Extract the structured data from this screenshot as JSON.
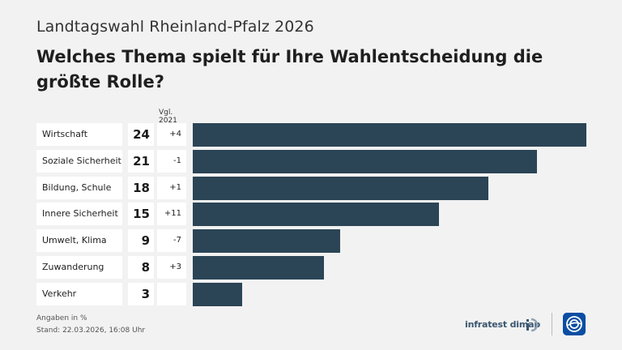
{
  "header": {
    "supertitle": "Landtagswahl Rheinland-Pfalz 2026",
    "title": "Welches Thema spielt für Ihre Wahlentscheidung die größte Rolle?",
    "compare_label": "Vgl. 2021"
  },
  "chart_data": {
    "type": "bar",
    "orientation": "horizontal",
    "title": "Welches Thema spielt für Ihre Wahlentscheidung die größte Rolle?",
    "unit": "Angaben in %",
    "categories": [
      "Wirtschaft",
      "Soziale Sicherheit",
      "Bildung, Schule",
      "Innere Sicherheit",
      "Umwelt, Klima",
      "Zuwanderung",
      "Verkehr"
    ],
    "values": [
      24,
      21,
      18,
      15,
      9,
      8,
      3
    ],
    "diffs": [
      "+4",
      "-1",
      "+1",
      "+11",
      "-7",
      "+3",
      ""
    ],
    "xlim": [
      0,
      24
    ],
    "bar_color": "#2b4556"
  },
  "footer": {
    "unit_note": "Angaben in %",
    "timestamp": "Stand:  22.03.2026, 16:08 Uhr",
    "brand": "infratest dimap"
  },
  "colors": {
    "background": "#f2f2f2",
    "bar": "#2b4556",
    "ard_blue": "#0a4ea3"
  }
}
